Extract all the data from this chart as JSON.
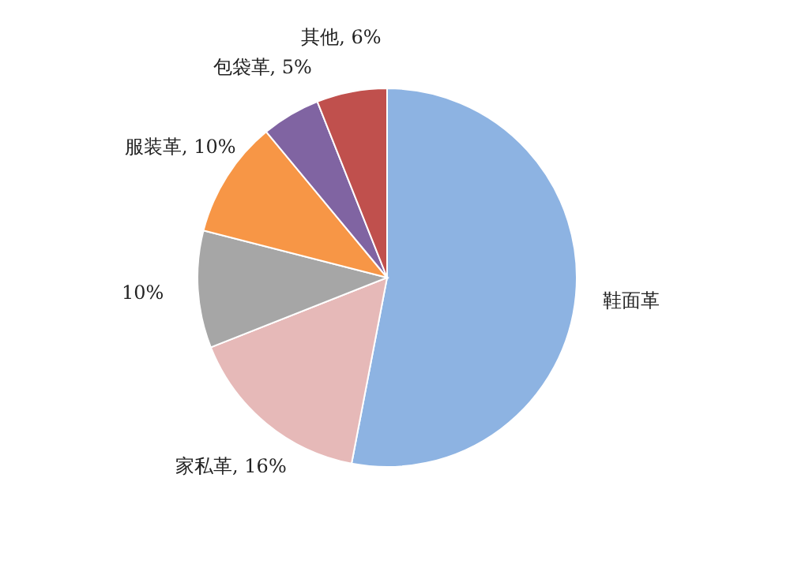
{
  "chart_data": {
    "type": "pie",
    "categories": [
      "鞋面革",
      "家私革",
      null,
      "服装革",
      "包袋革",
      "其他"
    ],
    "values": [
      53,
      16,
      10,
      10,
      5,
      6
    ],
    "value_labels": [
      null,
      "16%",
      "10%",
      "10%",
      "5%",
      "6%"
    ],
    "colors": [
      "#8db3e2",
      "#e6b9b8",
      "#a6a6a6",
      "#f79646",
      "#8064a2",
      "#c0504d"
    ],
    "legend": false
  }
}
